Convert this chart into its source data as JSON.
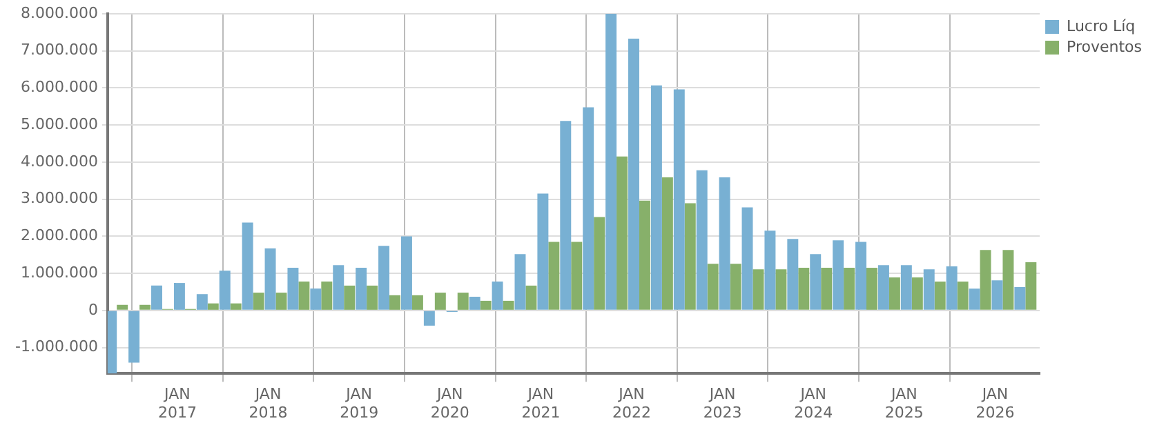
{
  "chart_data": {
    "type": "bar",
    "x": [
      "2016-05",
      "2016-08",
      "2016-11",
      "2017-02",
      "2017-05",
      "2017-08",
      "2017-11",
      "2018-02",
      "2018-05",
      "2018-08",
      "2018-11",
      "2019-02",
      "2019-05",
      "2019-08",
      "2019-11",
      "2020-02",
      "2020-05",
      "2020-08",
      "2020-11",
      "2021-02",
      "2021-05",
      "2021-08",
      "2021-11",
      "2022-02",
      "2022-05",
      "2022-08",
      "2022-11",
      "2023-02",
      "2023-05",
      "2023-08",
      "2023-11",
      "2024-02",
      "2024-05",
      "2024-08",
      "2024-11",
      "2025-02",
      "2025-05",
      "2025-08",
      "2025-11",
      "2026-02",
      "2026-05"
    ],
    "series": [
      {
        "name": "Lucro Líq",
        "color": "#78b0d3",
        "values": [
          -1700000,
          -1410000,
          670000,
          740000,
          440000,
          1070000,
          2370000,
          1670000,
          1150000,
          590000,
          1220000,
          1150000,
          1740000,
          2000000,
          -410000,
          -40000,
          370000,
          780000,
          1520000,
          3150000,
          5110000,
          5480000,
          8000000,
          7330000,
          6070000,
          5960000,
          3780000,
          3590000,
          2780000,
          2150000,
          1930000,
          1520000,
          1890000,
          1850000,
          1220000,
          1220000,
          1110000,
          1190000,
          590000,
          810000,
          630000
        ]
      },
      {
        "name": "Proventos",
        "color": "#87b06a",
        "values": [
          150000,
          150000,
          40000,
          40000,
          190000,
          190000,
          480000,
          480000,
          780000,
          780000,
          670000,
          670000,
          410000,
          410000,
          480000,
          480000,
          260000,
          260000,
          670000,
          1850000,
          1850000,
          2520000,
          4150000,
          2960000,
          3590000,
          2890000,
          1260000,
          1260000,
          1110000,
          1110000,
          1150000,
          1150000,
          1150000,
          1150000,
          890000,
          890000,
          780000,
          780000,
          1630000,
          1630000,
          1300000
        ]
      }
    ],
    "xlim": [
      "2016-03-25",
      "2026-06-28"
    ],
    "xticks": [
      {
        "value": "2017-01",
        "label": "JAN 2017"
      },
      {
        "value": "2018-01",
        "label": "JAN 2018"
      },
      {
        "value": "2019-01",
        "label": "JAN 2019"
      },
      {
        "value": "2020-01",
        "label": "JAN 2020"
      },
      {
        "value": "2021-01",
        "label": "JAN 2021"
      },
      {
        "value": "2022-01",
        "label": "JAN 2022"
      },
      {
        "value": "2023-01",
        "label": "JAN 2023"
      },
      {
        "value": "2024-01",
        "label": "JAN 2024"
      },
      {
        "value": "2025-01",
        "label": "JAN 2025"
      },
      {
        "value": "2026-01",
        "label": "JAN 2026"
      }
    ],
    "ylim": [
      -1700000,
      8000000
    ],
    "yticks": [
      {
        "value": -1000000,
        "label": "-1.000.000"
      },
      {
        "value": 0,
        "label": "0"
      },
      {
        "value": 1000000,
        "label": "1.000.000"
      },
      {
        "value": 2000000,
        "label": "2.000.000"
      },
      {
        "value": 3000000,
        "label": "3.000.000"
      },
      {
        "value": 4000000,
        "label": "4.000.000"
      },
      {
        "value": 5000000,
        "label": "5.000.000"
      },
      {
        "value": 6000000,
        "label": "6.000.000"
      },
      {
        "value": 7000000,
        "label": "7.000.000"
      },
      {
        "value": 8000000,
        "label": "8.000.000"
      }
    ],
    "grid": true,
    "legend": "top right"
  }
}
